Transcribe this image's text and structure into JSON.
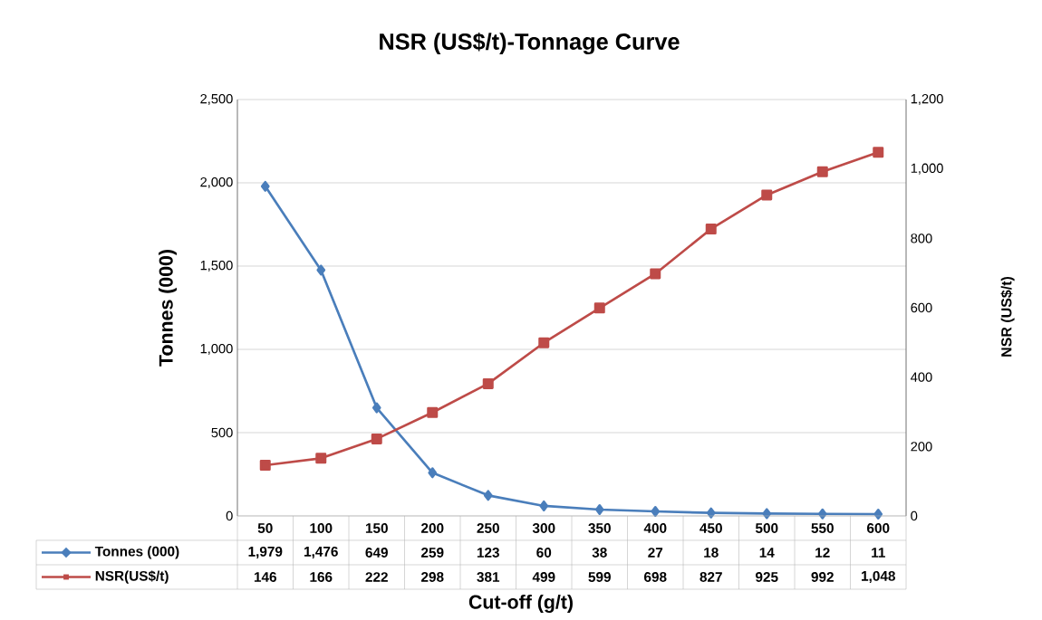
{
  "chart_data": {
    "type": "line",
    "title": "NSR (US$/t)-Tonnage Curve",
    "xlabel": "Cut-off (g/t)",
    "ylabel": "Tonnes (000)",
    "y2label": "NSR (US$/t)",
    "categories": [
      "50",
      "100",
      "150",
      "200",
      "250",
      "300",
      "350",
      "400",
      "450",
      "500",
      "550",
      "600"
    ],
    "series": [
      {
        "name": "Tonnes (000)",
        "color": "#4a7ebb",
        "marker": "diamond",
        "values": [
          1979,
          1476,
          649,
          259,
          123,
          60,
          38,
          27,
          18,
          14,
          12,
          11
        ],
        "value_labels": [
          "1,979",
          "1,476",
          "649",
          "259",
          "123",
          "60",
          "38",
          "27",
          "18",
          "14",
          "12",
          "11"
        ]
      },
      {
        "name": "NSR(US$/t)",
        "color": "#be4b48",
        "marker": "square",
        "axis": "y2",
        "values": [
          146,
          166,
          222,
          298,
          381,
          499,
          599,
          698,
          827,
          925,
          992,
          1048
        ],
        "value_labels": [
          "146",
          "166",
          "222",
          "298",
          "381",
          "499",
          "599",
          "698",
          "827",
          "925",
          "992",
          "1,048"
        ]
      }
    ],
    "ylim": [
      0,
      2500
    ],
    "yticks": [
      0,
      500,
      {
        "value": 1000,
        "label": "1,000"
      },
      {
        "value": 1500,
        "label": "1,500"
      },
      {
        "value": 2000,
        "label": "2,000"
      },
      {
        "value": 2500,
        "label": "2,500"
      }
    ],
    "y2lim": [
      0,
      1200
    ],
    "y2ticks": [
      0,
      200,
      400,
      600,
      800,
      {
        "value": 1000,
        "label": "1,000"
      },
      {
        "value": 1200,
        "label": "1,200"
      }
    ],
    "grid": "y",
    "legend": "bottom"
  }
}
